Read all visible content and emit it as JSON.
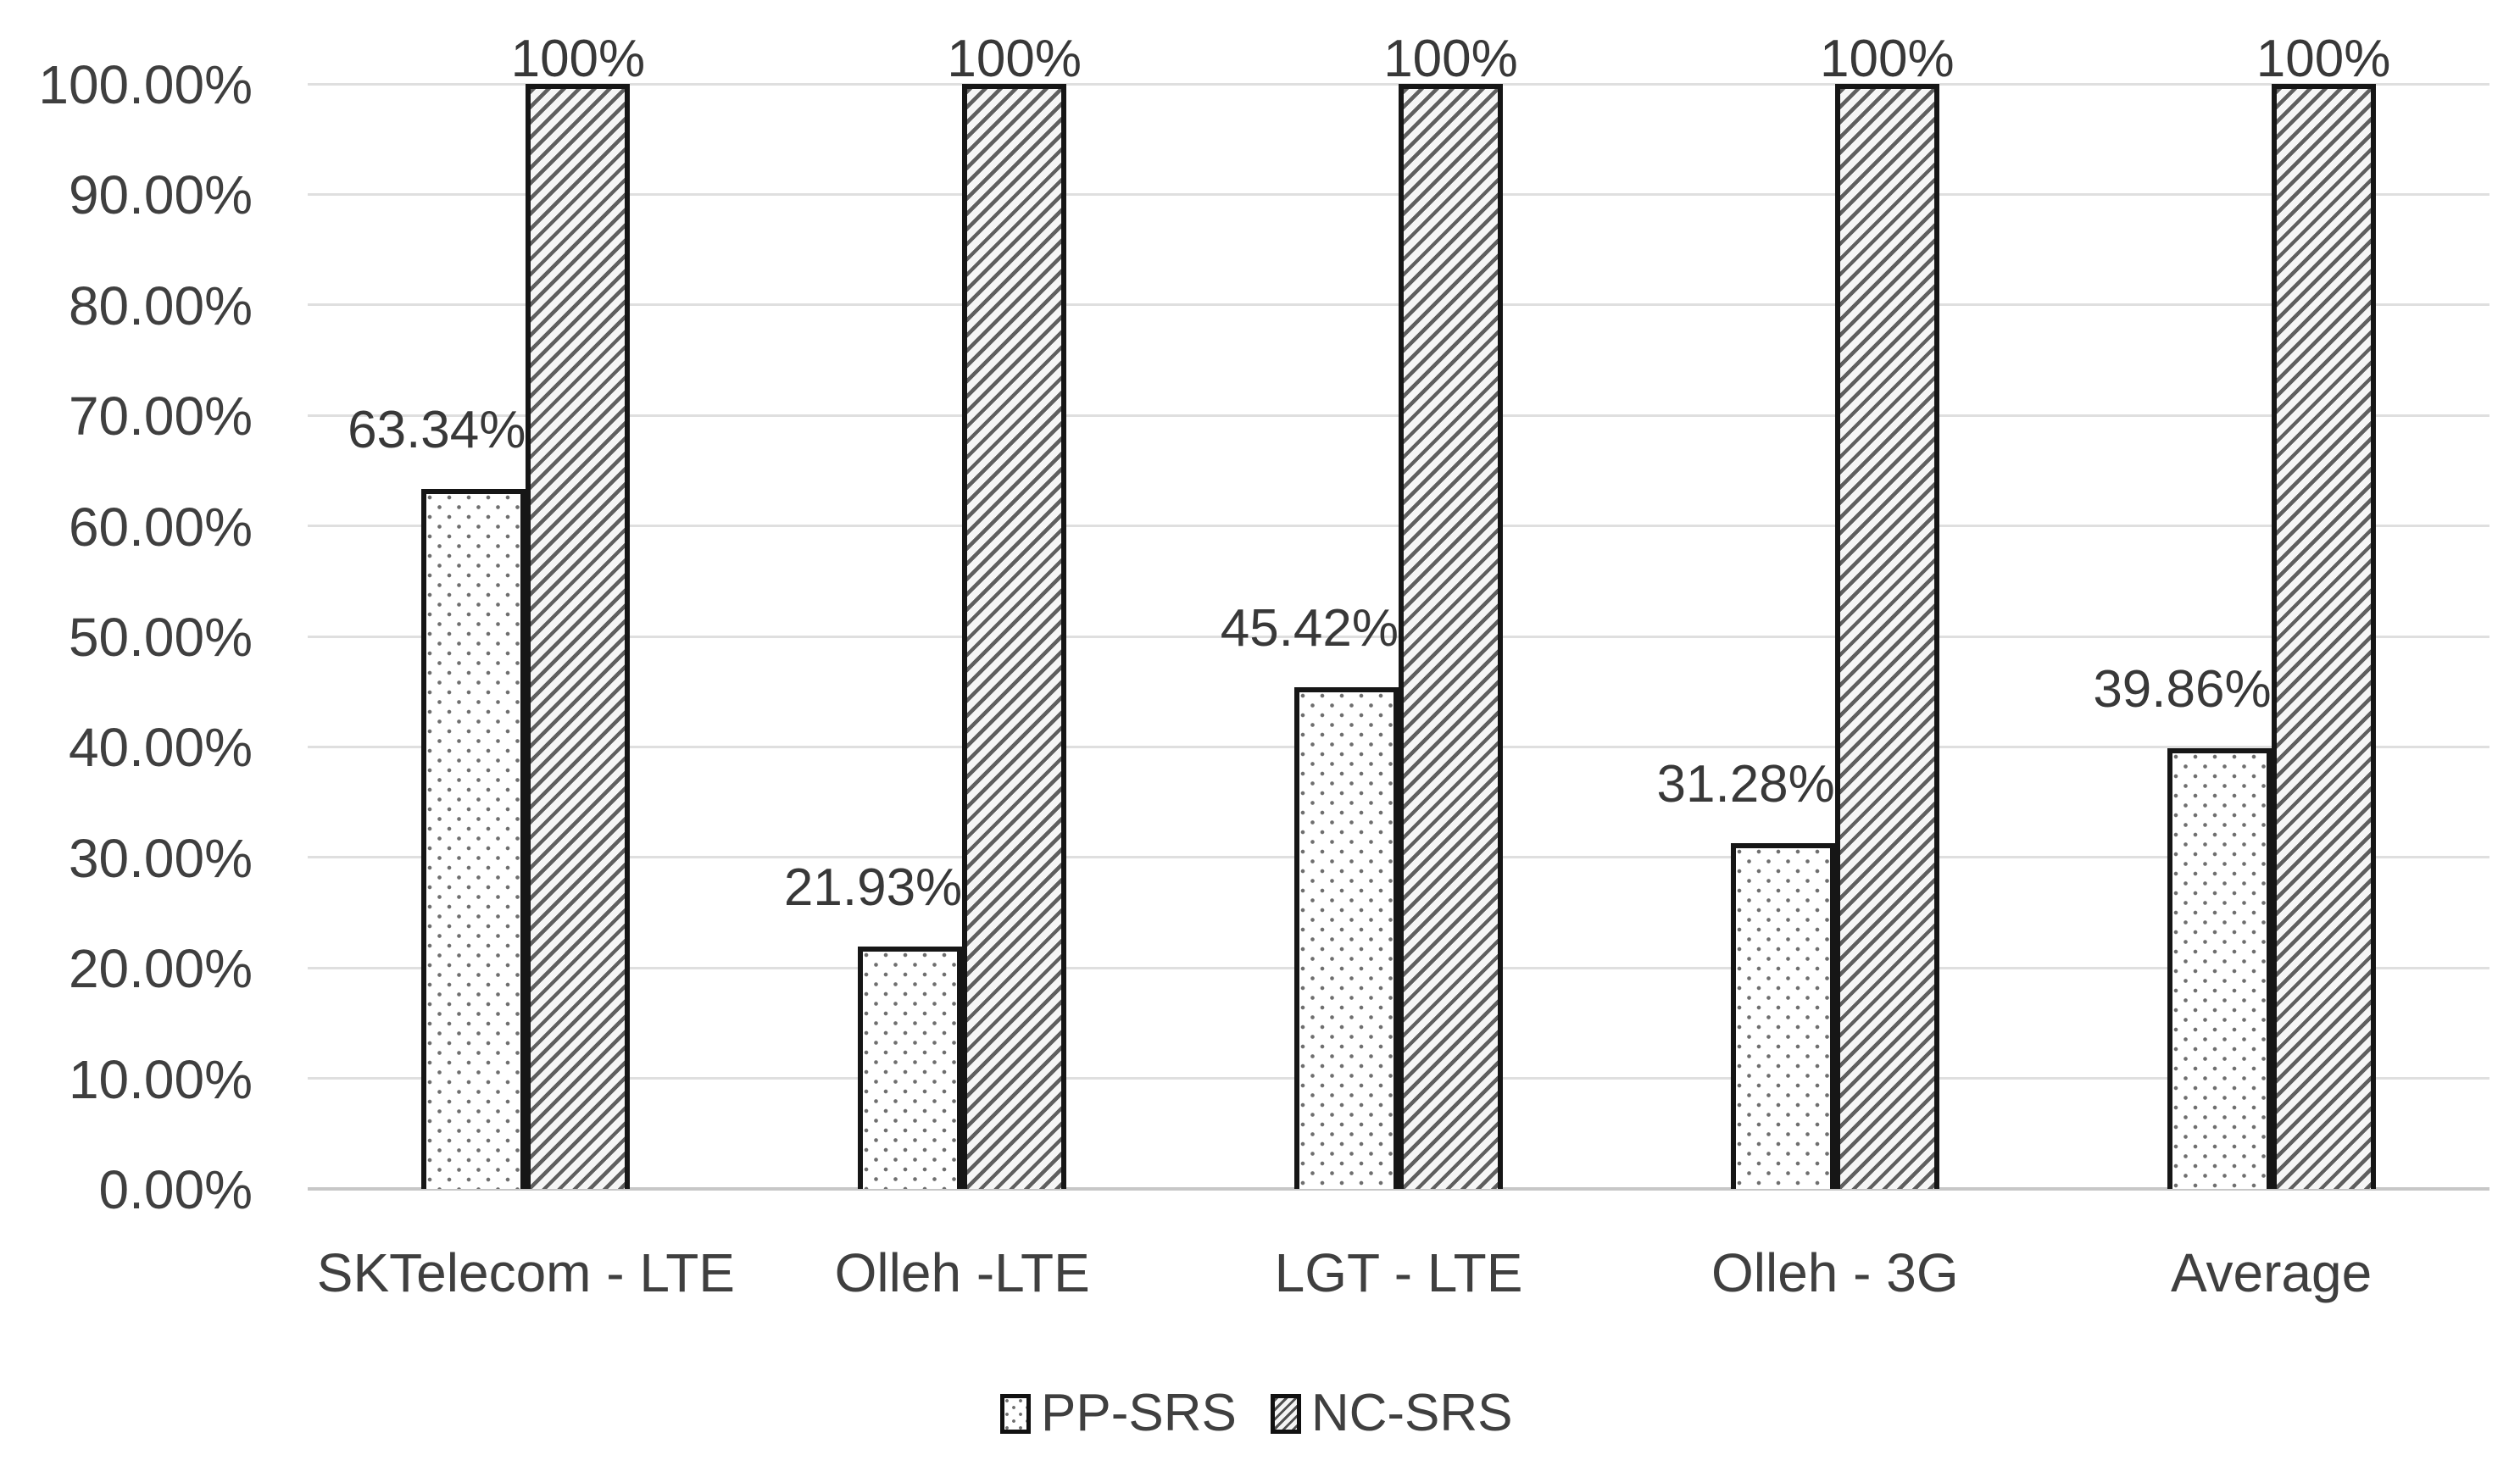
{
  "chart_data": {
    "type": "bar",
    "title": "",
    "xlabel": "",
    "ylabel": "",
    "categories": [
      "SKTelecom - LTE",
      "Olleh -LTE",
      "LGT - LTE",
      "Olleh - 3G",
      "Average"
    ],
    "series": [
      {
        "name": "PP-SRS",
        "pattern": "dotted",
        "values": [
          63.34,
          21.93,
          45.42,
          31.28,
          39.86
        ],
        "labels": [
          "63.34%",
          "21.93%",
          "45.42%",
          "31.28%",
          "39.86%"
        ]
      },
      {
        "name": "NC-SRS",
        "pattern": "diagonal-hatch",
        "values": [
          100,
          100,
          100,
          100,
          100
        ],
        "labels": [
          "100%",
          "100%",
          "100%",
          "100%",
          "100%"
        ]
      }
    ],
    "y_axis": {
      "min": 0,
      "max": 100,
      "tick_step": 10,
      "tick_labels": [
        "0.00%",
        "10.00%",
        "20.00%",
        "30.00%",
        "40.00%",
        "50.00%",
        "60.00%",
        "70.00%",
        "80.00%",
        "90.00%",
        "100.00%"
      ]
    },
    "grid": true,
    "legend_position": "bottom",
    "colors": {
      "background": "#ffffff",
      "text": "#3f3f3f",
      "data_label_text": "#383838",
      "gridline": "#dfdfdf",
      "axis_baseline": "#c7c7c7",
      "bar_border": "#161616",
      "pattern_ink": "#5f5f5f"
    }
  },
  "legend": {
    "items": [
      {
        "label": "PP-SRS",
        "swatch": "dotted-swatch"
      },
      {
        "label": "NC-SRS",
        "swatch": "hatch-swatch"
      }
    ]
  }
}
